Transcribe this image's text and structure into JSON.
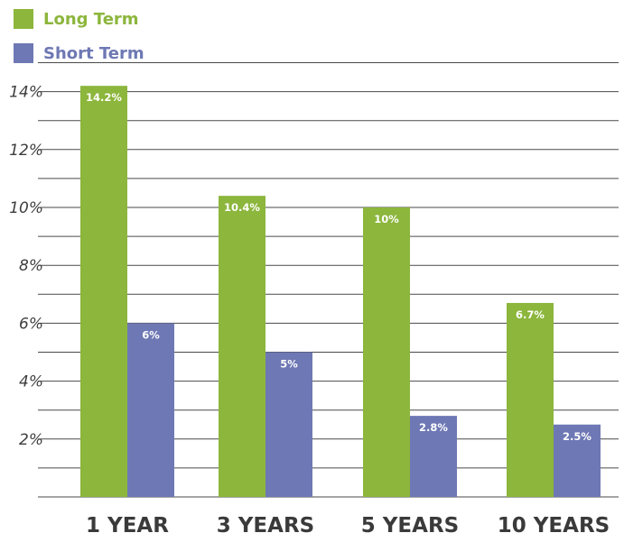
{
  "colors": {
    "long_term": "#8cb63c",
    "short_term": "#6e78b4",
    "grid": "#4a4a4a"
  },
  "legend": {
    "items": [
      {
        "label": "Long Term",
        "color": "#8cb63c"
      },
      {
        "label": "Short Term",
        "color": "#6e78b4"
      }
    ]
  },
  "chart_data": {
    "type": "bar",
    "categories": [
      "1 YEAR",
      "3 YEARS",
      "5 YEARS",
      "10 YEARS"
    ],
    "series": [
      {
        "name": "Long Term",
        "values": [
          14.2,
          10.4,
          10,
          6.7
        ],
        "labels": [
          "14.2%",
          "10.4%",
          "10%",
          "6.7%"
        ]
      },
      {
        "name": "Short Term",
        "values": [
          6,
          5,
          2.8,
          2.5
        ],
        "labels": [
          "6%",
          "5%",
          "2.8%",
          "2.5%"
        ]
      }
    ],
    "yticks": [
      "2%",
      "4%",
      "6%",
      "8%",
      "10%",
      "12%",
      "14%"
    ],
    "ylim": [
      0,
      14
    ],
    "grid": true,
    "legend_position": "top-left"
  }
}
